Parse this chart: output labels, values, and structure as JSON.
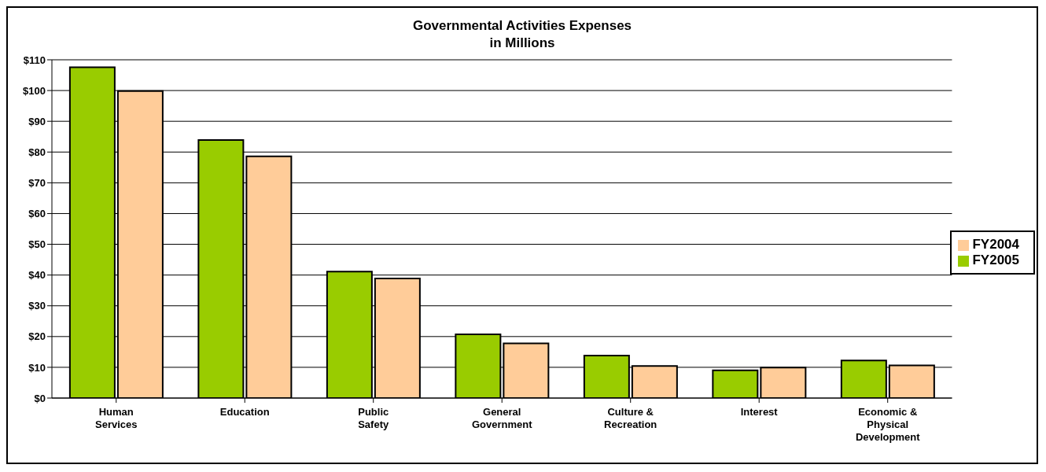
{
  "chart_data": {
    "type": "bar",
    "title": "Governmental Activities Expenses",
    "subtitle": "in Millions",
    "categories": [
      "Human Services",
      "Education",
      "Public Safety",
      "General Government",
      "Culture & Recreation",
      "Interest",
      "Economic & Physical Development"
    ],
    "series": [
      {
        "name": "FY2005",
        "color": "#99cc00",
        "values": [
          107.6,
          83.9,
          41.1,
          20.7,
          13.8,
          9.0,
          12.2
        ]
      },
      {
        "name": "FY2004",
        "color": "#ffcc99",
        "values": [
          99.8,
          78.6,
          38.9,
          17.8,
          10.4,
          9.9,
          10.6
        ]
      }
    ],
    "ylim": [
      0,
      110
    ],
    "yticks": [
      {
        "value": 0,
        "label": "$0"
      },
      {
        "value": 10,
        "label": "$10"
      },
      {
        "value": 20,
        "label": "$20"
      },
      {
        "value": 30,
        "label": "$30"
      },
      {
        "value": 40,
        "label": "$40"
      },
      {
        "value": 50,
        "label": "$50"
      },
      {
        "value": 60,
        "label": "$60"
      },
      {
        "value": 70,
        "label": "$70"
      },
      {
        "value": 80,
        "label": "$80"
      },
      {
        "value": 90,
        "label": "$90"
      },
      {
        "value": 100,
        "label": "$100"
      },
      {
        "value": 110,
        "label": "$110"
      }
    ],
    "grid": "y",
    "legend": "right"
  }
}
